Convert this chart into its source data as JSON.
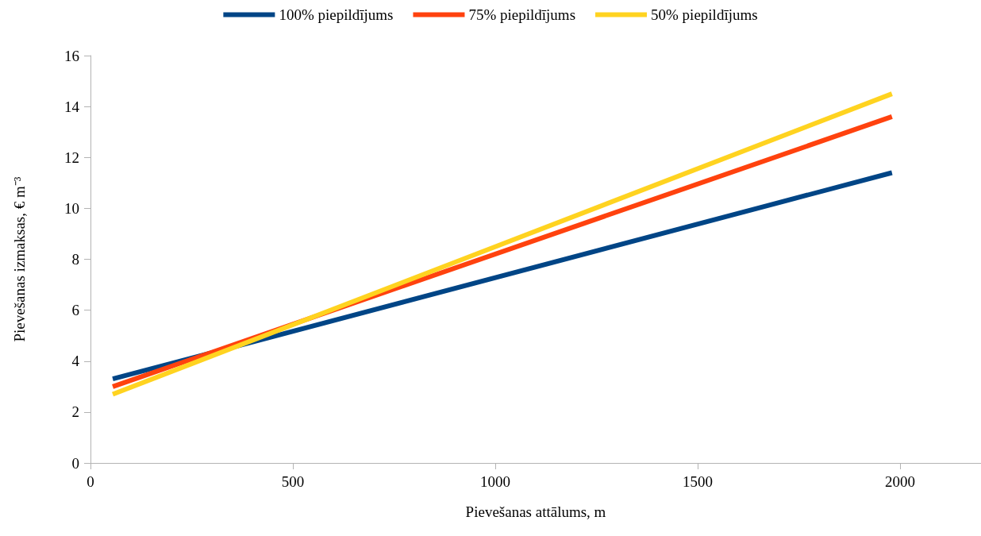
{
  "chart_data": {
    "type": "line",
    "xlabel": "Pievešanas attālums, m",
    "ylabel": "Pievešanas izmaksas, € m⁻³",
    "x": [
      55,
      1980
    ],
    "series": [
      {
        "name": "100% piepildījums",
        "color": "#004586",
        "values": [
          3.3,
          11.4
        ]
      },
      {
        "name": "75% piepildījums",
        "color": "#ff420e",
        "values": [
          3.0,
          13.6
        ]
      },
      {
        "name": "50% piepildījums",
        "color": "#ffd320",
        "values": [
          2.7,
          14.5
        ]
      }
    ],
    "xlim": [
      0,
      2200
    ],
    "xticks": [
      0,
      500,
      1000,
      1500,
      2000
    ],
    "ylim": [
      0,
      16
    ],
    "yticks": [
      0,
      2,
      4,
      6,
      8,
      10,
      12,
      14,
      16
    ],
    "grid": false,
    "legend": "top",
    "marker": "none",
    "line_style": "solid"
  }
}
